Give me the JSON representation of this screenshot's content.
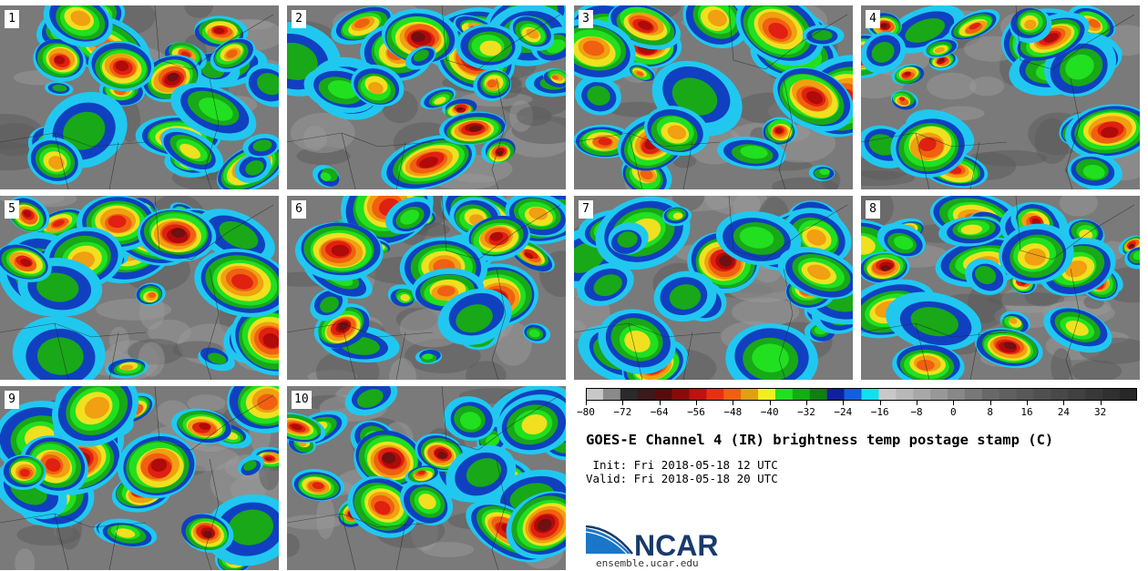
{
  "panels": [
    {
      "label": "1"
    },
    {
      "label": "2"
    },
    {
      "label": "3"
    },
    {
      "label": "4"
    },
    {
      "label": "5"
    },
    {
      "label": "6"
    },
    {
      "label": "7"
    },
    {
      "label": "8"
    },
    {
      "label": "9"
    },
    {
      "label": "10"
    }
  ],
  "colorbar": {
    "min": -80,
    "max": 40,
    "tick_labels": [
      "−80",
      "−72",
      "−64",
      "−56",
      "−48",
      "−40",
      "−32",
      "−24",
      "−16",
      "−8",
      "0",
      "8",
      "16",
      "24",
      "32"
    ],
    "colors": [
      "#c8c8c8",
      "#8a8a8a",
      "#2a2a2a",
      "#3a1a1a",
      "#5a0a0a",
      "#8a0a0a",
      "#c01010",
      "#e83010",
      "#f06010",
      "#e0a010",
      "#f0f020",
      "#20e020",
      "#10b010",
      "#108010",
      "#1020a0",
      "#1060e0",
      "#10e0f0",
      "#c8c8c8",
      "#b8b8b8",
      "#a8a8a8",
      "#989898",
      "#888888",
      "#787878",
      "#686868",
      "#606060",
      "#585858",
      "#505050",
      "#484848",
      "#404040",
      "#383838",
      "#303030",
      "#282828"
    ]
  },
  "title": "GOES-E Channel 4 (IR) brightness temp postage stamp (C)",
  "init_line": " Init: Fri 2018-05-18 12 UTC",
  "valid_line": "Valid: Fri 2018-05-18 20 UTC",
  "logo": {
    "text": "NCAR",
    "url_text": "ensemble.ucar.edu",
    "color": "#1a3a6a"
  }
}
